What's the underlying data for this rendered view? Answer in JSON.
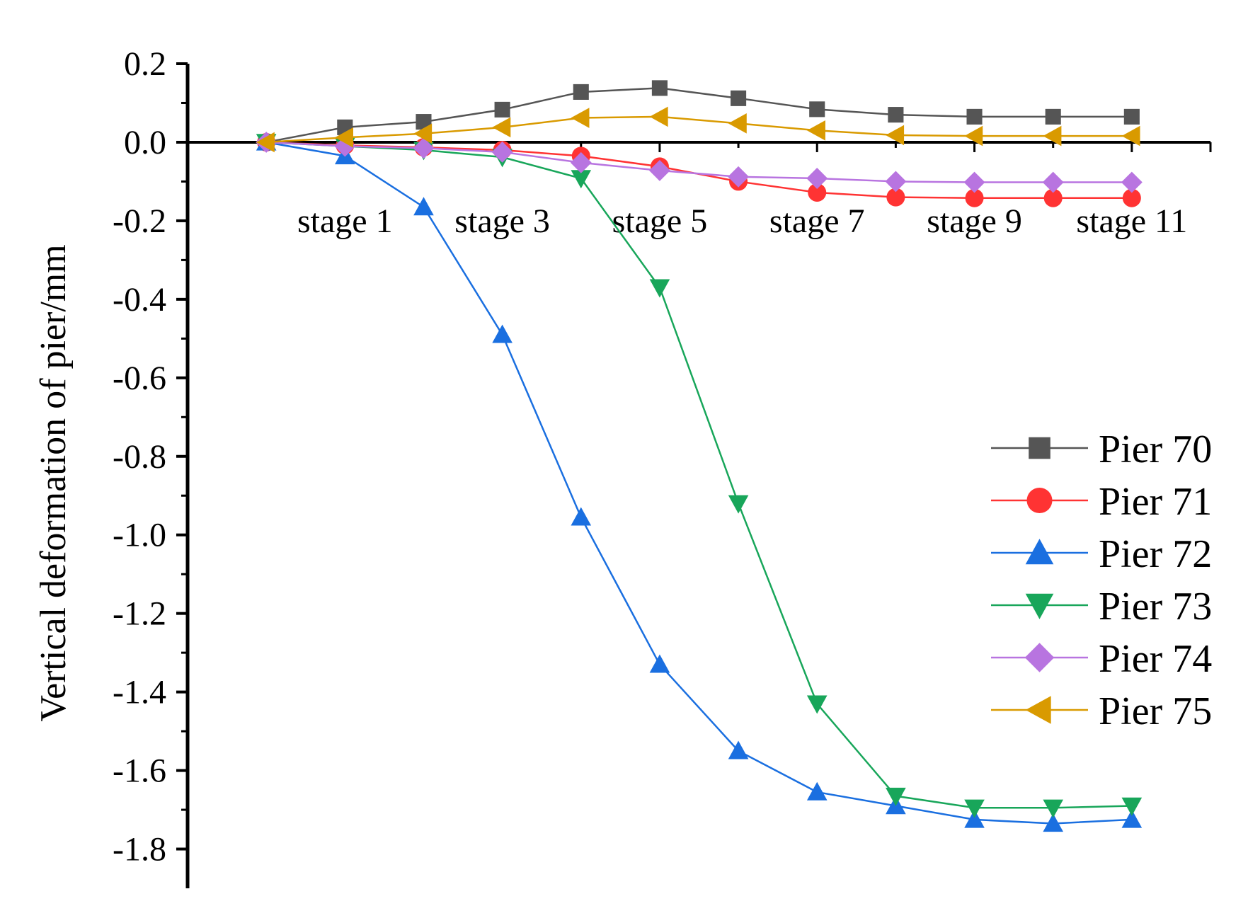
{
  "chart_data": {
    "type": "line",
    "title": "",
    "xlabel": "",
    "ylabel": "Vertical deformation of pier/mm",
    "x": [
      0,
      1,
      2,
      3,
      4,
      5,
      6,
      7,
      8,
      9,
      10,
      11
    ],
    "xlim": [
      -1,
      12
    ],
    "ylim": [
      -1.9,
      0.2
    ],
    "yticks": [
      0.2,
      0.0,
      -0.2,
      -0.4,
      -0.6,
      -0.8,
      -1.0,
      -1.2,
      -1.4,
      -1.6,
      -1.8
    ],
    "ytick_labels": [
      "0.2",
      "0.0",
      "-0.2",
      "-0.4",
      "-0.6",
      "-0.8",
      "-1.0",
      "-1.2",
      "-1.4",
      "-1.6",
      "-1.8"
    ],
    "stage_labels": [
      {
        "x": 1,
        "label": "stage 1"
      },
      {
        "x": 3,
        "label": "stage 3"
      },
      {
        "x": 5,
        "label": "stage 5"
      },
      {
        "x": 7,
        "label": "stage 7"
      },
      {
        "x": 9,
        "label": "stage 9"
      },
      {
        "x": 11,
        "label": "stage 11"
      }
    ],
    "legend_position": "right",
    "grid": false,
    "series": [
      {
        "name": "Pier 70",
        "color": "#555555",
        "marker": "square",
        "values": [
          0.0,
          0.038,
          0.052,
          0.083,
          0.128,
          0.138,
          0.112,
          0.084,
          0.07,
          0.065,
          0.065,
          0.065
        ]
      },
      {
        "name": "Pier 71",
        "color": "#ff3333",
        "marker": "circle",
        "values": [
          0.0,
          -0.008,
          -0.013,
          -0.02,
          -0.035,
          -0.062,
          -0.1,
          -0.128,
          -0.14,
          -0.142,
          -0.142,
          -0.142
        ]
      },
      {
        "name": "Pier 72",
        "color": "#1a6fe0",
        "marker": "triangle-up",
        "values": [
          0.0,
          -0.035,
          -0.165,
          -0.49,
          -0.955,
          -1.33,
          -1.55,
          -1.655,
          -1.69,
          -1.725,
          -1.735,
          -1.725
        ]
      },
      {
        "name": "Pier 73",
        "color": "#18a65a",
        "marker": "triangle-down",
        "values": [
          0.0,
          -0.01,
          -0.02,
          -0.038,
          -0.092,
          -0.37,
          -0.92,
          -1.43,
          -1.665,
          -1.695,
          -1.695,
          -1.69
        ]
      },
      {
        "name": "Pier 74",
        "color": "#b874e0",
        "marker": "diamond",
        "values": [
          0.0,
          -0.01,
          -0.015,
          -0.025,
          -0.052,
          -0.072,
          -0.088,
          -0.092,
          -0.1,
          -0.102,
          -0.102,
          -0.102
        ]
      },
      {
        "name": "Pier 75",
        "color": "#d99a00",
        "marker": "triangle-left",
        "values": [
          0.0,
          0.012,
          0.022,
          0.038,
          0.062,
          0.065,
          0.048,
          0.03,
          0.018,
          0.016,
          0.016,
          0.016
        ]
      }
    ]
  }
}
